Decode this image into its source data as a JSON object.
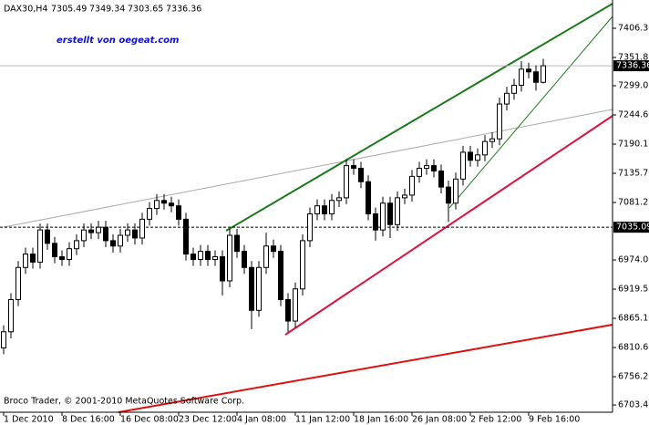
{
  "chart_data": {
    "type": "candlestick",
    "title": "DAX30,H4",
    "watermark": "erstellt von oegeat.com",
    "copyright": "Broco Trader, © 2001-2010 MetaQuotes Software Corp.",
    "current_price": 7336.36,
    "level_price": 7035.09,
    "categories": [
      "1 Dec 2010",
      null,
      null,
      null,
      null,
      null,
      null,
      null,
      "8 Dec 16:00",
      null,
      null,
      null,
      null,
      null,
      null,
      null,
      "16 Dec 08:00",
      null,
      null,
      null,
      null,
      null,
      null,
      null,
      "23 Dec 12:00",
      null,
      null,
      null,
      null,
      null,
      null,
      null,
      "4 Jan 08:00",
      null,
      null,
      null,
      null,
      null,
      null,
      null,
      "11 Jan 12:00",
      null,
      null,
      null,
      null,
      null,
      null,
      null,
      "18 Jan 16:00",
      null,
      null,
      null,
      null,
      null,
      null,
      null,
      "26 Jan 08:00",
      null,
      null,
      null,
      null,
      null,
      null,
      null,
      "2 Feb 12:00",
      null,
      null,
      null,
      null,
      null,
      null,
      null,
      "9 Feb 16:00",
      null,
      null
    ],
    "open": [
      6810,
      6840,
      6900,
      6960,
      6985,
      6970,
      7030,
      7005,
      6980,
      6975,
      6995,
      7010,
      7030,
      7025,
      7035,
      7010,
      7000,
      7020,
      7030,
      7015,
      7050,
      7070,
      7085,
      7080,
      7075,
      7050,
      6985,
      6975,
      6990,
      6975,
      6980,
      6935,
      7020,
      6990,
      6960,
      6880,
      6960,
      7000,
      6990,
      6900,
      6860,
      6920,
      7010,
      7060,
      7075,
      7060,
      7085,
      7090,
      7150,
      7145,
      7120,
      7060,
      7030,
      7080,
      7040,
      7090,
      7095,
      7130,
      7145,
      7150,
      7140,
      7110,
      7080,
      7125,
      7175,
      7160,
      7170,
      7195,
      7200,
      7265,
      7285,
      7300,
      7330,
      7325,
      7305.49
    ],
    "high": [
      6852,
      6912,
      6972,
      6997,
      6997,
      7042,
      7042,
      7017,
      6992,
      7007,
      7022,
      7042,
      7042,
      7047,
      7047,
      7022,
      7032,
      7042,
      7042,
      7062,
      7082,
      7097,
      7097,
      7092,
      7087,
      7062,
      6997,
      7002,
      7002,
      6992,
      6992,
      7032,
      7032,
      7002,
      6972,
      6972,
      7025,
      7012,
      7002,
      6912,
      6932,
      7022,
      7072,
      7087,
      7087,
      7097,
      7102,
      7162,
      7162,
      7157,
      7132,
      7072,
      7092,
      7092,
      7102,
      7107,
      7142,
      7157,
      7162,
      7162,
      7152,
      7122,
      7137,
      7187,
      7187,
      7182,
      7207,
      7212,
      7277,
      7297,
      7312,
      7345,
      7342,
      7337,
      7349.34
    ],
    "low": [
      6798,
      6828,
      6888,
      6948,
      6958,
      6958,
      6993,
      6968,
      6963,
      6963,
      6983,
      6998,
      7013,
      7013,
      6998,
      6988,
      6988,
      7008,
      7003,
      7003,
      7038,
      7058,
      7068,
      7063,
      7038,
      6973,
      6963,
      6963,
      6963,
      6963,
      6908,
      6923,
      6978,
      6948,
      6845,
      6868,
      6948,
      6978,
      6888,
      6840,
      6848,
      6908,
      6998,
      7048,
      7048,
      7048,
      7073,
      7078,
      7133,
      7108,
      7048,
      7010,
      7018,
      7015,
      7028,
      7078,
      7083,
      7118,
      7133,
      7128,
      7098,
      7045,
      7068,
      7113,
      7148,
      7148,
      7158,
      7183,
      7188,
      7253,
      7273,
      7288,
      7313,
      7290,
      7303.65
    ],
    "close": [
      6840,
      6900,
      6960,
      6985,
      6970,
      7030,
      7005,
      6980,
      6975,
      6995,
      7010,
      7030,
      7025,
      7035,
      7010,
      7000,
      7020,
      7030,
      7015,
      7050,
      7070,
      7085,
      7080,
      7075,
      7050,
      6985,
      6975,
      6990,
      6975,
      6980,
      6935,
      7020,
      6990,
      6960,
      6880,
      6960,
      7000,
      6990,
      6900,
      6860,
      6920,
      7010,
      7060,
      7075,
      7060,
      7085,
      7090,
      7150,
      7145,
      7120,
      7060,
      7030,
      7080,
      7040,
      7090,
      7095,
      7130,
      7145,
      7150,
      7140,
      7110,
      7080,
      7125,
      7175,
      7160,
      7170,
      7195,
      7200,
      7265,
      7285,
      7300,
      7330,
      7325,
      7305.49,
      7336.36
    ],
    "ylim": [
      6689.9,
      7459.05
    ],
    "yticks": [
      {
        "value": 7406.3,
        "label": "7406.30"
      },
      7351.85,
      7299.05,
      {
        "value": 7244.6,
        "label": "7244.60"
      },
      7190.15,
      {
        "value": 7135.7,
        "label": "7135.70"
      },
      7081.25,
      {
        "value": 6974,
        "label": "6974.00"
      },
      6919.55,
      {
        "value": 6865.1,
        "label": "6865.10"
      },
      6810.65,
      {
        "value": 6756.2,
        "label": "6756.20"
      },
      {
        "value": 6703.4,
        "label": "6703.40"
      }
    ]
  }
}
